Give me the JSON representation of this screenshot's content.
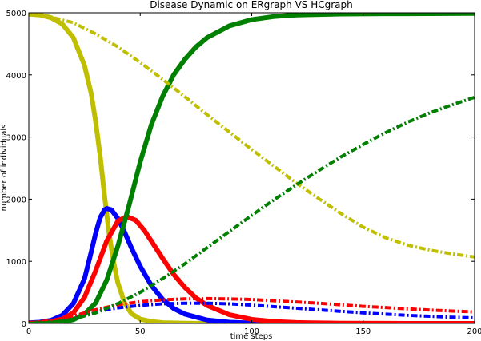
{
  "chart_data": {
    "type": "line",
    "title": "Disease Dynamic on ERgraph VS HCgraph",
    "xlabel": "time steps",
    "ylabel": "number of individuals",
    "xlim": [
      0,
      200
    ],
    "ylim": [
      0,
      5000
    ],
    "xticks": [
      0,
      50,
      100,
      150,
      200
    ],
    "yticks": [
      0,
      1000,
      2000,
      3000,
      4000,
      5000
    ],
    "grid": false,
    "legend": "none",
    "series": [
      {
        "color": "#bfbf00",
        "style": "solid",
        "points": [
          [
            0,
            4980
          ],
          [
            5,
            4965
          ],
          [
            10,
            4920
          ],
          [
            15,
            4820
          ],
          [
            20,
            4600
          ],
          [
            25,
            4150
          ],
          [
            28,
            3700
          ],
          [
            30,
            3250
          ],
          [
            32,
            2700
          ],
          [
            34,
            2050
          ],
          [
            36,
            1450
          ],
          [
            38,
            1000
          ],
          [
            40,
            650
          ],
          [
            43,
            330
          ],
          [
            46,
            160
          ],
          [
            50,
            70
          ],
          [
            55,
            30
          ],
          [
            60,
            12
          ],
          [
            70,
            3
          ],
          [
            80,
            0
          ],
          [
            200,
            0
          ]
        ]
      },
      {
        "color": "#0000ff",
        "style": "solid",
        "points": [
          [
            0,
            10
          ],
          [
            5,
            20
          ],
          [
            10,
            50
          ],
          [
            15,
            130
          ],
          [
            20,
            320
          ],
          [
            25,
            720
          ],
          [
            28,
            1150
          ],
          [
            30,
            1450
          ],
          [
            32,
            1700
          ],
          [
            34,
            1830
          ],
          [
            35,
            1850
          ],
          [
            37,
            1830
          ],
          [
            40,
            1690
          ],
          [
            43,
            1470
          ],
          [
            46,
            1220
          ],
          [
            50,
            920
          ],
          [
            55,
            610
          ],
          [
            60,
            390
          ],
          [
            65,
            240
          ],
          [
            70,
            150
          ],
          [
            80,
            55
          ],
          [
            90,
            20
          ],
          [
            100,
            7
          ],
          [
            110,
            2
          ],
          [
            120,
            0
          ],
          [
            200,
            0
          ]
        ]
      },
      {
        "color": "#ff0000",
        "style": "solid",
        "points": [
          [
            0,
            5
          ],
          [
            5,
            10
          ],
          [
            10,
            25
          ],
          [
            15,
            70
          ],
          [
            20,
            170
          ],
          [
            25,
            420
          ],
          [
            30,
            850
          ],
          [
            35,
            1330
          ],
          [
            40,
            1650
          ],
          [
            44,
            1720
          ],
          [
            48,
            1660
          ],
          [
            52,
            1490
          ],
          [
            56,
            1270
          ],
          [
            60,
            1050
          ],
          [
            65,
            790
          ],
          [
            70,
            580
          ],
          [
            75,
            410
          ],
          [
            80,
            290
          ],
          [
            90,
            140
          ],
          [
            100,
            65
          ],
          [
            110,
            30
          ],
          [
            120,
            14
          ],
          [
            140,
            3
          ],
          [
            160,
            1
          ],
          [
            200,
            0
          ]
        ]
      },
      {
        "color": "#008000",
        "style": "solid",
        "points": [
          [
            0,
            0
          ],
          [
            10,
            10
          ],
          [
            15,
            25
          ],
          [
            20,
            60
          ],
          [
            25,
            150
          ],
          [
            30,
            330
          ],
          [
            35,
            700
          ],
          [
            40,
            1250
          ],
          [
            45,
            1900
          ],
          [
            50,
            2600
          ],
          [
            55,
            3200
          ],
          [
            60,
            3650
          ],
          [
            65,
            4000
          ],
          [
            70,
            4250
          ],
          [
            75,
            4450
          ],
          [
            80,
            4600
          ],
          [
            90,
            4790
          ],
          [
            100,
            4890
          ],
          [
            110,
            4940
          ],
          [
            120,
            4965
          ],
          [
            140,
            4980
          ],
          [
            160,
            4985
          ],
          [
            200,
            4990
          ]
        ]
      },
      {
        "color": "#bfbf00",
        "style": "dashdot",
        "points": [
          [
            0,
            4980
          ],
          [
            5,
            4960
          ],
          [
            10,
            4930
          ],
          [
            20,
            4840
          ],
          [
            30,
            4660
          ],
          [
            40,
            4450
          ],
          [
            50,
            4200
          ],
          [
            60,
            3930
          ],
          [
            70,
            3650
          ],
          [
            80,
            3360
          ],
          [
            90,
            3080
          ],
          [
            100,
            2800
          ],
          [
            110,
            2530
          ],
          [
            120,
            2260
          ],
          [
            130,
            2010
          ],
          [
            140,
            1770
          ],
          [
            150,
            1550
          ],
          [
            160,
            1380
          ],
          [
            170,
            1260
          ],
          [
            180,
            1180
          ],
          [
            190,
            1120
          ],
          [
            200,
            1070
          ]
        ]
      },
      {
        "color": "#0000ff",
        "style": "dashdot",
        "points": [
          [
            0,
            10
          ],
          [
            10,
            40
          ],
          [
            20,
            110
          ],
          [
            30,
            190
          ],
          [
            40,
            250
          ],
          [
            50,
            290
          ],
          [
            60,
            315
          ],
          [
            70,
            325
          ],
          [
            80,
            325
          ],
          [
            90,
            315
          ],
          [
            100,
            295
          ],
          [
            110,
            270
          ],
          [
            120,
            245
          ],
          [
            130,
            220
          ],
          [
            140,
            195
          ],
          [
            150,
            170
          ],
          [
            160,
            150
          ],
          [
            170,
            130
          ],
          [
            180,
            115
          ],
          [
            190,
            100
          ],
          [
            200,
            90
          ]
        ]
      },
      {
        "color": "#ff0000",
        "style": "dashdot",
        "points": [
          [
            0,
            10
          ],
          [
            10,
            45
          ],
          [
            20,
            120
          ],
          [
            30,
            220
          ],
          [
            40,
            300
          ],
          [
            50,
            350
          ],
          [
            60,
            380
          ],
          [
            70,
            395
          ],
          [
            80,
            400
          ],
          [
            90,
            395
          ],
          [
            100,
            385
          ],
          [
            110,
            365
          ],
          [
            120,
            345
          ],
          [
            130,
            325
          ],
          [
            140,
            300
          ],
          [
            150,
            275
          ],
          [
            160,
            255
          ],
          [
            170,
            235
          ],
          [
            180,
            215
          ],
          [
            190,
            200
          ],
          [
            200,
            185
          ]
        ]
      },
      {
        "color": "#008000",
        "style": "dashdot",
        "points": [
          [
            0,
            0
          ],
          [
            10,
            15
          ],
          [
            20,
            70
          ],
          [
            30,
            170
          ],
          [
            40,
            320
          ],
          [
            50,
            500
          ],
          [
            60,
            720
          ],
          [
            70,
            960
          ],
          [
            80,
            1220
          ],
          [
            90,
            1480
          ],
          [
            100,
            1740
          ],
          [
            110,
            1990
          ],
          [
            120,
            2230
          ],
          [
            130,
            2460
          ],
          [
            140,
            2680
          ],
          [
            150,
            2880
          ],
          [
            160,
            3070
          ],
          [
            170,
            3240
          ],
          [
            180,
            3390
          ],
          [
            190,
            3520
          ],
          [
            200,
            3640
          ]
        ]
      }
    ]
  }
}
